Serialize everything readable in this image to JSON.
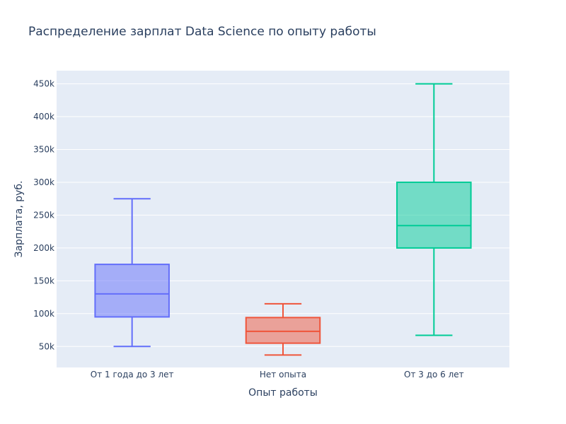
{
  "chart_data": {
    "type": "box",
    "title": "Распределение зарплат Data Science по опыту работы",
    "xlabel": "Опыт работы",
    "ylabel": "Зарплата, руб.",
    "ylim": [
      18000,
      470000
    ],
    "yticks": [
      50000,
      100000,
      150000,
      200000,
      250000,
      300000,
      350000,
      400000,
      450000
    ],
    "ytick_labels": [
      "50k",
      "100k",
      "150k",
      "200k",
      "250k",
      "300k",
      "350k",
      "400k",
      "450k"
    ],
    "grid": true,
    "legend": "none",
    "categories": [
      "От 1 года до 3 лет",
      "Нет опыта",
      "От 3 до 6 лет"
    ],
    "boxes": [
      {
        "category": "От 1 года до 3 лет",
        "min": 50000,
        "q1": 95000,
        "median": 130000,
        "q3": 175000,
        "max": 275000,
        "color": "#636efa"
      },
      {
        "category": "Нет опыта",
        "min": 37000,
        "q1": 55000,
        "median": 73000,
        "q3": 94000,
        "max": 115000,
        "color": "#ef553b"
      },
      {
        "category": "От 3 до 6 лет",
        "min": 67000,
        "q1": 200000,
        "median": 234000,
        "q3": 300000,
        "max": 450000,
        "color": "#00cc96"
      }
    ],
    "plot_background": "#e5ecf6",
    "text_color": "#2a3f5f"
  }
}
